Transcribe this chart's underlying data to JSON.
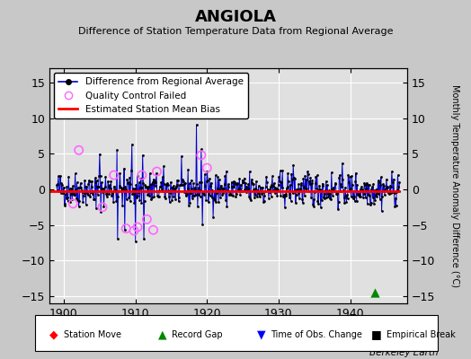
{
  "title": "ANGIOLA",
  "subtitle": "Difference of Station Temperature Data from Regional Average",
  "ylabel_right": "Monthly Temperature Anomaly Difference (°C)",
  "xlim": [
    1898,
    1948
  ],
  "ylim": [
    -16,
    17
  ],
  "yticks": [
    -15,
    -10,
    -5,
    0,
    5,
    10,
    15
  ],
  "xticks": [
    1900,
    1910,
    1920,
    1930,
    1940
  ],
  "bias_line_y": -0.3,
  "bias_line_x_start": 1898,
  "bias_line_x_end": 1947,
  "record_gap_x": 1943.5,
  "record_gap_y": -14.5,
  "background_color": "#e0e0e0",
  "fig_background_color": "#c8c8c8",
  "line_color": "#0000cc",
  "bias_color": "#ff0000",
  "dot_color": "#000000",
  "qc_fail_color": "#ff66ff",
  "grid_color": "#ffffff",
  "berkeley_earth_text": "Berkeley Earth",
  "seed": 42,
  "start_year": 1899.0,
  "end_year": 1946.9
}
